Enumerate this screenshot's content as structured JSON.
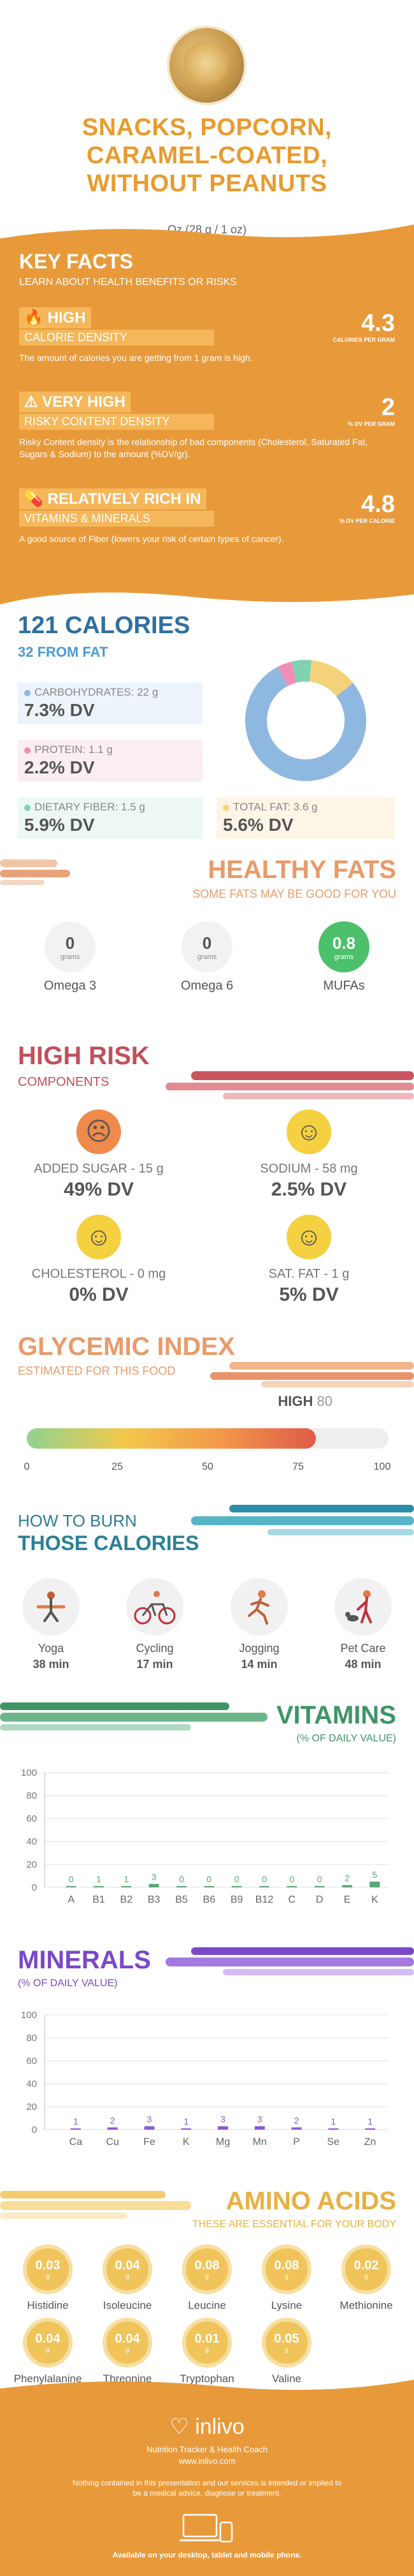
{
  "header": {
    "title_lines": [
      "SNACKS, POPCORN,",
      "CARAMEL-COATED,",
      "WITHOUT PEANUTS"
    ],
    "serving": "Oz (28 g / 1 oz)"
  },
  "key_facts": {
    "title": "KEY FACTS",
    "subtitle": "LEARN ABOUT HEALTH BENEFITS OR RISKS",
    "items": [
      {
        "level": "HIGH",
        "label": "CALORIE DENSITY",
        "desc": "The amount of calories you are getting from 1 gram is high.",
        "value": "4.3",
        "unit": "CALORIES PER GRAM",
        "icon": "flame-icon"
      },
      {
        "level": "VERY HIGH",
        "label": "RISKY CONTENT DENSITY",
        "desc": "Risky Content density is the relationship of bad components (Cholesterol, Saturated Fat, Sugars & Sodium) to the amount (%DV/gr).",
        "value": "2",
        "unit": "% DV PER GRAM",
        "icon": "warning-icon"
      },
      {
        "level": "RELATIVELY RICH  IN",
        "label": "VITAMINS & MINERALS",
        "desc": "A good source of Fiber (lowers your risk of certain types of cancer).",
        "value": "4.8",
        "unit": "% DV PER CALORIE",
        "icon": "vitamin-icon"
      }
    ]
  },
  "calories": {
    "title": "121 CALORIES",
    "subtitle": "32 FROM FAT",
    "nutrients": [
      {
        "label": "CARBOHYDRATES: 22 g",
        "dv": "7.3% DV",
        "color": "#8fb8e0"
      },
      {
        "label": "PROTEIN: 1.1 g",
        "dv": "2.2% DV",
        "color": "#f08fb5"
      },
      {
        "label": "DIETARY FIBER: 1.5 g",
        "dv": "5.9% DV",
        "color": "#7fd3b0"
      },
      {
        "label": "TOTAL FAT: 3.6 g",
        "dv": "5.6% DV",
        "color": "#f5d27a"
      }
    ],
    "donut": [
      {
        "name": "carbs",
        "value": 22,
        "color": "#8fb8e0"
      },
      {
        "name": "protein",
        "value": 1.1,
        "color": "#f08fb5"
      },
      {
        "name": "fiber",
        "value": 1.5,
        "color": "#7fd3b0"
      },
      {
        "name": "fat",
        "value": 3.6,
        "color": "#f5d27a"
      }
    ]
  },
  "healthy_fats": {
    "title": "HEALTHY FATS",
    "subtitle": "SOME FATS MAY BE GOOD FOR YOU",
    "items": [
      {
        "value": "0",
        "unit": "grams",
        "label": "Omega 3"
      },
      {
        "value": "0",
        "unit": "grams",
        "label": "Omega 6"
      },
      {
        "value": "0.8",
        "unit": "grams",
        "label": "MUFAs"
      }
    ]
  },
  "high_risk": {
    "title": "HIGH RISK",
    "subtitle": "COMPONENTS",
    "items": [
      {
        "label": "ADDED SUGAR - 15 g",
        "dv": "49% DV",
        "face": "☹",
        "color": "#f08a4a"
      },
      {
        "label": "SODIUM - 58 mg",
        "dv": "2.5% DV",
        "face": "☺",
        "color": "#f5d040"
      },
      {
        "label": "CHOLESTEROL - 0 mg",
        "dv": "0% DV",
        "face": "☺",
        "color": "#f5d040"
      },
      {
        "label": "SAT. FAT - 1 g",
        "dv": "5% DV",
        "face": "☺",
        "color": "#f5d040"
      }
    ]
  },
  "glycemic": {
    "title": "GLYCEMIC INDEX",
    "subtitle": "ESTIMATED FOR THIS FOOD",
    "level": "HIGH",
    "value": 80,
    "value_text": "80",
    "ticks": [
      "0",
      "25",
      "50",
      "75",
      "100"
    ]
  },
  "burn": {
    "title1": "HOW TO BURN",
    "title2": "THOSE CALORIES",
    "items": [
      {
        "label": "Yoga",
        "time": "38 min",
        "icon": "yoga-icon"
      },
      {
        "label": "Cycling",
        "time": "17 min",
        "icon": "cycling-icon"
      },
      {
        "label": "Jogging",
        "time": "14 min",
        "icon": "jogging-icon"
      },
      {
        "label": "Pet Care",
        "time": "48 min",
        "icon": "pet-care-icon"
      }
    ]
  },
  "chart_data": [
    {
      "type": "bar",
      "title": "VITAMINS",
      "subtitle": "(% OF DAILY VALUE)",
      "categories": [
        "A",
        "B1",
        "B2",
        "B3",
        "B5",
        "B6",
        "B9",
        "B12",
        "C",
        "D",
        "E",
        "K"
      ],
      "values": [
        0,
        1,
        1,
        3,
        0,
        0,
        0,
        0,
        0,
        0,
        2,
        5
      ],
      "value_labels": [
        "0",
        "1",
        "1",
        "3",
        "0",
        "0",
        "0",
        "0",
        "0",
        "0",
        "2",
        "5"
      ],
      "yticks": [
        "0",
        "20",
        "40",
        "60",
        "80",
        "100"
      ],
      "ylim": [
        0,
        100
      ],
      "color": "#5aa67a"
    },
    {
      "type": "bar",
      "title": "MINERALS",
      "subtitle": "(% OF DAILY VALUE)",
      "categories": [
        "Ca",
        "Cu",
        "Fe",
        "K",
        "Mg",
        "Mn",
        "P",
        "Se",
        "Zn"
      ],
      "values": [
        1,
        2,
        3,
        1,
        3,
        3,
        2,
        1,
        1
      ],
      "value_labels": [
        "1",
        "2",
        "3",
        "1",
        "3",
        "3",
        "2",
        "1",
        "1"
      ],
      "yticks": [
        "0",
        "20",
        "40",
        "60",
        "80",
        "100"
      ],
      "ylim": [
        0,
        100
      ],
      "color": "#8a5ad4"
    }
  ],
  "amino": {
    "title": "AMINO ACIDS",
    "subtitle": "THESE ARE ESSENTIAL FOR YOUR BODY",
    "items": [
      {
        "value": "0.03",
        "unit": "g",
        "label": "Histidine"
      },
      {
        "value": "0.04",
        "unit": "g",
        "label": "Isoleucine"
      },
      {
        "value": "0.08",
        "unit": "g",
        "label": "Leucine"
      },
      {
        "value": "0.08",
        "unit": "g",
        "label": "Lysine"
      },
      {
        "value": "0.02",
        "unit": "g",
        "label": "Methionine"
      },
      {
        "value": "0.04",
        "unit": "g",
        "label": "Phenylalanine"
      },
      {
        "value": "0.04",
        "unit": "g",
        "label": "Threonine"
      },
      {
        "value": "0.01",
        "unit": "g",
        "label": "Tryptophan"
      },
      {
        "value": "0.05",
        "unit": "g",
        "label": "Valine"
      }
    ]
  },
  "footer": {
    "brand": "inlivo",
    "tagline": "Nutrition Tracker & Health Coach",
    "url": "www.inlivo.com",
    "disclaimer": "Nothing contained in this presentation and our services is intended or implied to be a medical advice, diagnose or treatment.",
    "available": "Available on your desktop, tablet and mobile phone."
  }
}
